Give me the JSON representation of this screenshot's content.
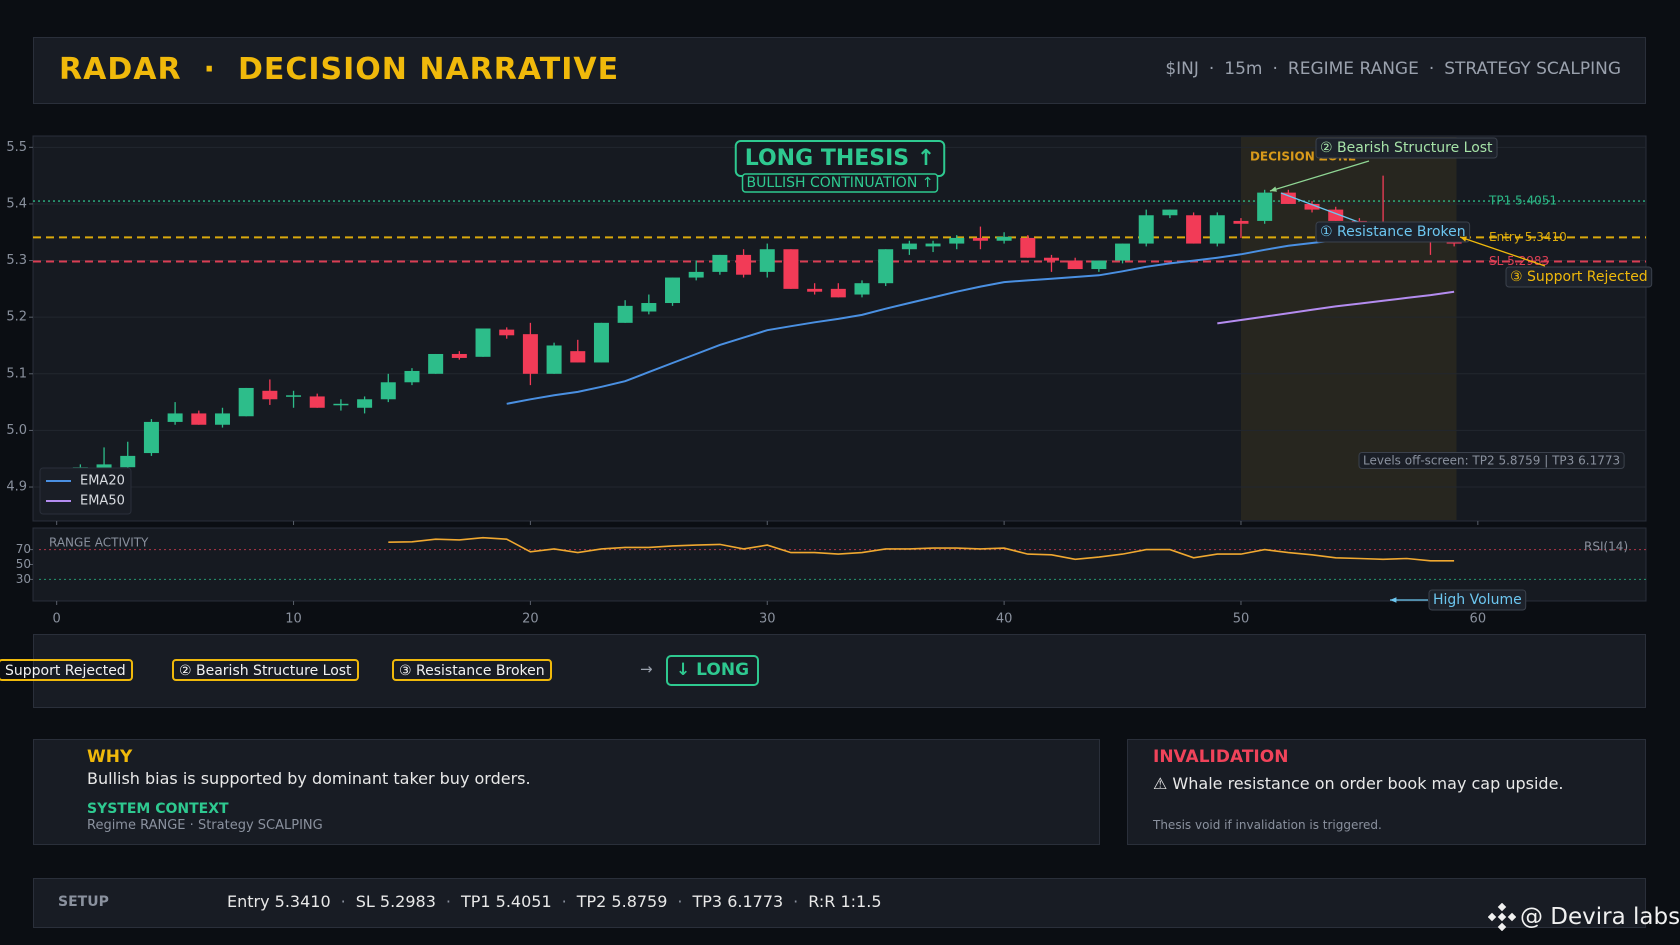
{
  "header": {
    "title": [
      "RADAR",
      "DECISION NARRATIVE"
    ],
    "meta": [
      "$INJ",
      "15m",
      "REGIME RANGE",
      "STRATEGY SCALPING"
    ]
  },
  "separator": "·",
  "chart_data": [
    {
      "type": "candlestick",
      "x": [
        0,
        1,
        2,
        3,
        4,
        5,
        6,
        7,
        8,
        9,
        10,
        11,
        12,
        13,
        14,
        15,
        16,
        17,
        18,
        19,
        20,
        21,
        22,
        23,
        24,
        25,
        26,
        27,
        28,
        29,
        30,
        31,
        32,
        33,
        34,
        35,
        36,
        37,
        38,
        39,
        40,
        41,
        42,
        43,
        44,
        45,
        46,
        47,
        48,
        49,
        50,
        51,
        52,
        53,
        54,
        55,
        56,
        57,
        58,
        59
      ],
      "open": [
        4.925,
        4.93,
        4.93,
        4.935,
        4.96,
        5.015,
        5.03,
        5.01,
        5.025,
        5.07,
        5.06,
        5.06,
        5.045,
        5.04,
        5.055,
        5.085,
        5.1,
        5.135,
        5.13,
        5.178,
        5.17,
        5.1,
        5.14,
        5.12,
        5.19,
        5.21,
        5.225,
        5.27,
        5.28,
        5.31,
        5.28,
        5.32,
        5.25,
        5.25,
        5.24,
        5.26,
        5.32,
        5.325,
        5.33,
        5.34,
        5.335,
        5.34,
        5.305,
        5.3,
        5.285,
        5.3,
        5.33,
        5.38,
        5.38,
        5.33,
        5.37,
        5.37,
        5.42,
        5.4,
        5.39,
        5.37,
        5.36,
        5.355,
        5.34,
        5.335
      ],
      "high": [
        4.93,
        4.94,
        4.97,
        4.98,
        5.02,
        5.05,
        5.035,
        5.04,
        5.075,
        5.09,
        5.07,
        5.065,
        5.055,
        5.06,
        5.1,
        5.11,
        5.135,
        5.14,
        5.18,
        5.182,
        5.19,
        5.155,
        5.16,
        5.19,
        5.23,
        5.24,
        5.27,
        5.3,
        5.31,
        5.32,
        5.33,
        5.32,
        5.26,
        5.26,
        5.265,
        5.32,
        5.335,
        5.335,
        5.345,
        5.36,
        5.35,
        5.345,
        5.31,
        5.305,
        5.3,
        5.33,
        5.39,
        5.39,
        5.385,
        5.385,
        5.375,
        5.425,
        5.425,
        5.405,
        5.395,
        5.375,
        5.45,
        5.365,
        5.345,
        5.34
      ],
      "low": [
        4.915,
        4.925,
        4.925,
        4.93,
        4.955,
        5.01,
        5.01,
        5.005,
        5.025,
        5.045,
        5.04,
        5.04,
        5.035,
        5.03,
        5.05,
        5.08,
        5.1,
        5.125,
        5.13,
        5.162,
        5.08,
        5.1,
        5.12,
        5.12,
        5.19,
        5.205,
        5.22,
        5.265,
        5.275,
        5.27,
        5.27,
        5.25,
        5.24,
        5.235,
        5.235,
        5.255,
        5.31,
        5.315,
        5.32,
        5.32,
        5.33,
        5.305,
        5.28,
        5.285,
        5.28,
        5.295,
        5.325,
        5.375,
        5.33,
        5.325,
        5.34,
        5.365,
        5.4,
        5.385,
        5.37,
        5.355,
        5.35,
        5.35,
        5.31,
        5.325
      ],
      "close": [
        4.92,
        4.935,
        4.94,
        4.955,
        5.015,
        5.03,
        5.01,
        5.03,
        5.075,
        5.055,
        5.062,
        5.04,
        5.047,
        5.055,
        5.085,
        5.105,
        5.135,
        5.128,
        5.18,
        5.168,
        5.1,
        5.15,
        5.12,
        5.19,
        5.22,
        5.225,
        5.27,
        5.28,
        5.31,
        5.275,
        5.32,
        5.25,
        5.245,
        5.235,
        5.26,
        5.32,
        5.33,
        5.33,
        5.34,
        5.335,
        5.342,
        5.305,
        5.3,
        5.285,
        5.3,
        5.33,
        5.38,
        5.39,
        5.33,
        5.38,
        5.365,
        5.42,
        5.4,
        5.39,
        5.37,
        5.36,
        5.355,
        5.36,
        5.335,
        5.33
      ],
      "up_color": "#2dbd8a",
      "down_color": "#f23b57",
      "series": [
        {
          "name": "EMA20",
          "color": "#4a90e2",
          "values": [
            null,
            null,
            null,
            null,
            null,
            null,
            null,
            null,
            null,
            null,
            null,
            null,
            null,
            null,
            null,
            null,
            null,
            null,
            null,
            5.047,
            5.055,
            5.062,
            5.068,
            5.077,
            5.087,
            5.103,
            5.119,
            5.135,
            5.151,
            5.164,
            5.177,
            5.184,
            5.191,
            5.197,
            5.204,
            5.215,
            5.225,
            5.235,
            5.245,
            5.254,
            5.262,
            5.265,
            5.268,
            5.271,
            5.274,
            5.281,
            5.289,
            5.295,
            5.3,
            5.305,
            5.311,
            5.319,
            5.326,
            5.331,
            5.336,
            5.339,
            5.341,
            5.342,
            5.343,
            5.344
          ]
        },
        {
          "name": "EMA50",
          "color": "#b48cf0",
          "values": [
            null,
            null,
            null,
            null,
            null,
            null,
            null,
            null,
            null,
            null,
            null,
            null,
            null,
            null,
            null,
            null,
            null,
            null,
            null,
            null,
            null,
            null,
            null,
            null,
            null,
            null,
            null,
            null,
            null,
            null,
            null,
            null,
            null,
            null,
            null,
            null,
            null,
            null,
            null,
            null,
            null,
            null,
            null,
            null,
            null,
            null,
            null,
            null,
            null,
            5.189,
            5.195,
            5.201,
            5.207,
            5.213,
            5.219,
            5.224,
            5.229,
            5.234,
            5.239,
            5.245
          ]
        }
      ],
      "xlim": [
        -1,
        67.1
      ],
      "ylim": [
        4.84,
        5.52
      ],
      "yticks": [
        4.9,
        {
          "value": 5,
          "label": "5.0"
        },
        5.1,
        5.2,
        5.3,
        5.4,
        5.5
      ],
      "grid": true,
      "legend": "lower left",
      "levels": [
        {
          "label": "TP1 5.4051",
          "value": 5.4051,
          "color": "#2ec990",
          "style": "dotted"
        },
        {
          "label": "Entry 5.3410",
          "value": 5.341,
          "color": "#f0b90b",
          "style": "dashed"
        },
        {
          "label": "SL 5.2983",
          "value": 5.2983,
          "color": "#f0435a",
          "style": "dashed"
        }
      ],
      "decision_zone": {
        "label": "DECISION ZONE",
        "x": [
          50,
          59.1
        ]
      },
      "thesis": {
        "title": "LONG THESIS  ↑",
        "subtitle": "BULLISH CONTINUATION ↑"
      },
      "annotations": [
        "② Bearish Structure Lost",
        "① Resistance Broken",
        "③ Support Rejected",
        "Levels off-screen: TP2 5.8759 | TP3 6.1773"
      ]
    },
    {
      "type": "line",
      "title": "RANGE ACTIVITY",
      "x": [
        0,
        1,
        2,
        3,
        4,
        5,
        6,
        7,
        8,
        9,
        10,
        11,
        12,
        13,
        14,
        15,
        16,
        17,
        18,
        19,
        20,
        21,
        22,
        23,
        24,
        25,
        26,
        27,
        28,
        29,
        30,
        31,
        32,
        33,
        34,
        35,
        36,
        37,
        38,
        39,
        40,
        41,
        42,
        43,
        44,
        45,
        46,
        47,
        48,
        49,
        50,
        51,
        52,
        53,
        54,
        55,
        56,
        57,
        58,
        59
      ],
      "series": [
        {
          "name": "RSI(14)",
          "color": "#f0a830",
          "values": [
            null,
            null,
            null,
            null,
            null,
            null,
            null,
            null,
            null,
            null,
            null,
            null,
            null,
            null,
            80,
            80.5,
            84,
            83,
            86,
            84,
            67,
            71,
            66,
            71,
            73,
            73,
            75,
            76,
            77,
            71,
            76,
            66,
            66,
            64,
            66,
            71,
            71,
            72,
            72,
            71,
            72,
            64,
            63,
            57,
            60,
            64,
            70,
            70,
            59,
            64,
            64,
            70,
            66,
            63,
            59,
            58,
            57,
            58,
            55,
            55
          ]
        }
      ],
      "xlim": [
        -1,
        67.1
      ],
      "ylim": [
        1,
        99
      ],
      "xticks": [
        0,
        10,
        20,
        30,
        40,
        50,
        60
      ],
      "yticks": [
        30,
        50,
        70
      ],
      "ref_lines": [
        {
          "value": 70,
          "color": "#f0435a"
        },
        {
          "value": 30,
          "color": "#2ec990"
        }
      ],
      "annotation": "High Volume"
    }
  ],
  "flow": {
    "steps": [
      "Support Rejected",
      "② Bearish Structure Lost",
      "③ Resistance Broken"
    ],
    "arrow": "→",
    "decision": "↓ LONG"
  },
  "why": {
    "title": "WHY",
    "text": "Bullish bias is supported by dominant taker buy orders.",
    "context_title": "SYSTEM CONTEXT",
    "context": [
      "Regime RANGE",
      "Strategy SCALPING"
    ]
  },
  "invalidation": {
    "title": "INVALIDATION",
    "text": "⚠ Whale resistance on order book may cap upside.",
    "note": "Thesis void if invalidation is triggered."
  },
  "setup": {
    "label": "SETUP",
    "items": [
      "Entry 5.3410",
      "SL 5.2983",
      "TP1 5.4051",
      "TP2 5.8759",
      "TP3 6.1773",
      "R:R 1:1.5"
    ]
  },
  "watermark": "@ Devira labs"
}
